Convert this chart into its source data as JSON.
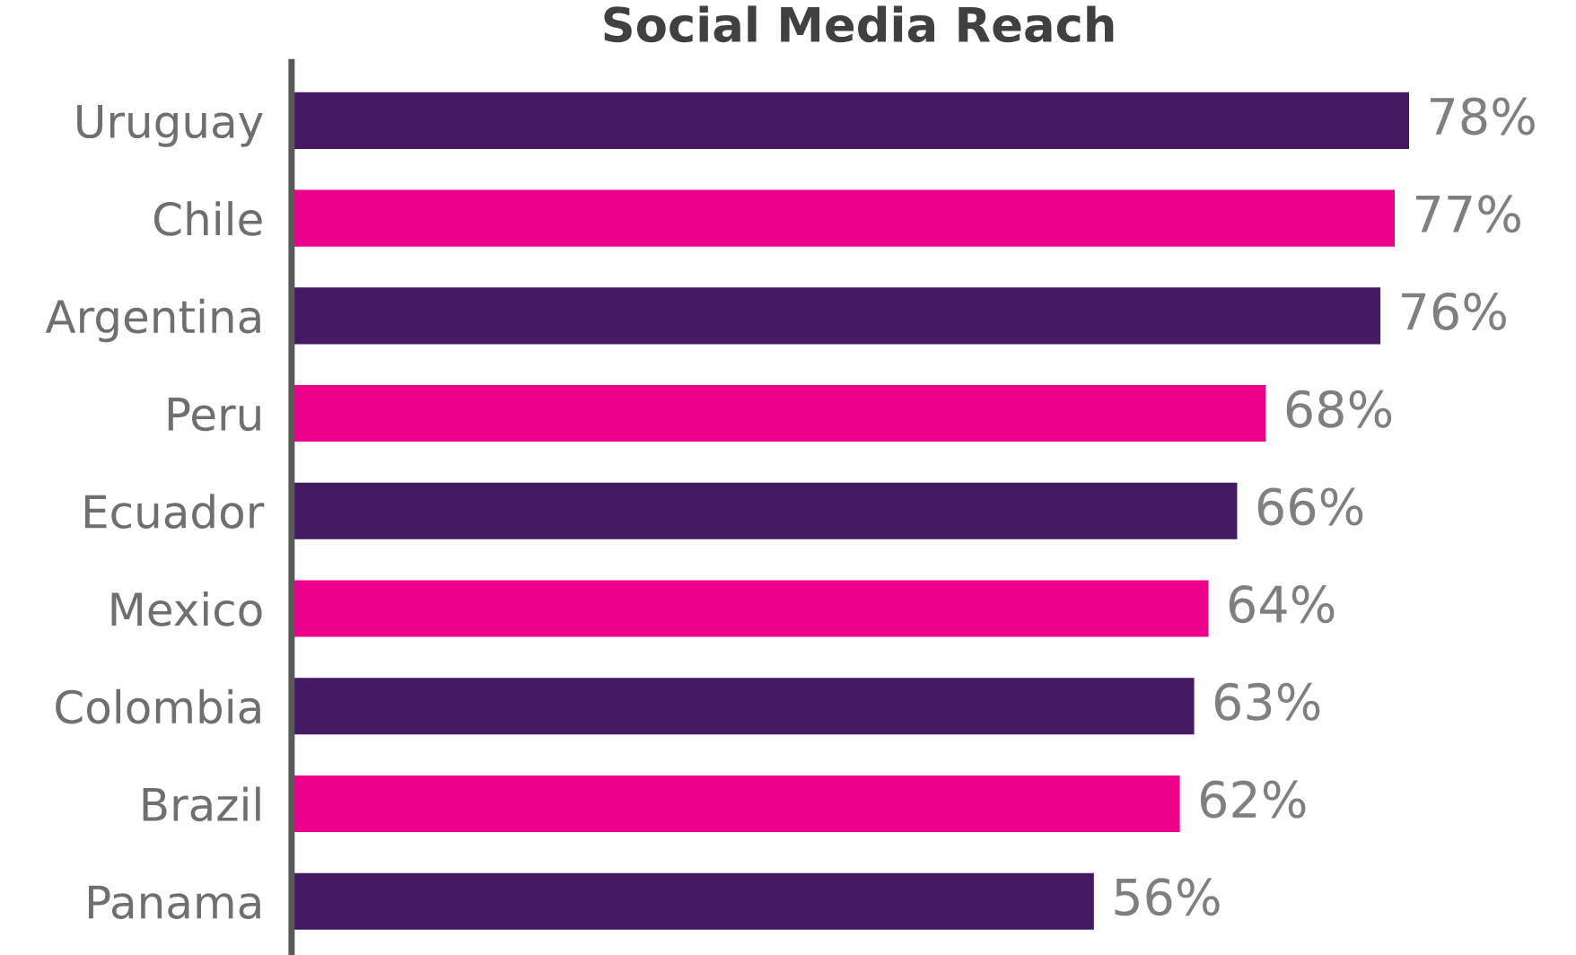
{
  "chart_data": {
    "type": "bar",
    "orientation": "horizontal",
    "title": "Social Media Reach",
    "categories": [
      "Uruguay",
      "Chile",
      "Argentina",
      "Peru",
      "Ecuador",
      "Mexico",
      "Colombia",
      "Brazil",
      "Panama"
    ],
    "values": [
      78,
      77,
      76,
      68,
      66,
      64,
      63,
      62,
      56
    ],
    "colors": [
      "#451864",
      "#ec008c",
      "#451864",
      "#ec008c",
      "#451864",
      "#ec008c",
      "#451864",
      "#ec008c",
      "#451864"
    ],
    "value_labels": [
      "78%",
      "77%",
      "76%",
      "68%",
      "66%",
      "64%",
      "63%",
      "62%",
      "56%"
    ],
    "grid": false,
    "legend": false
  }
}
